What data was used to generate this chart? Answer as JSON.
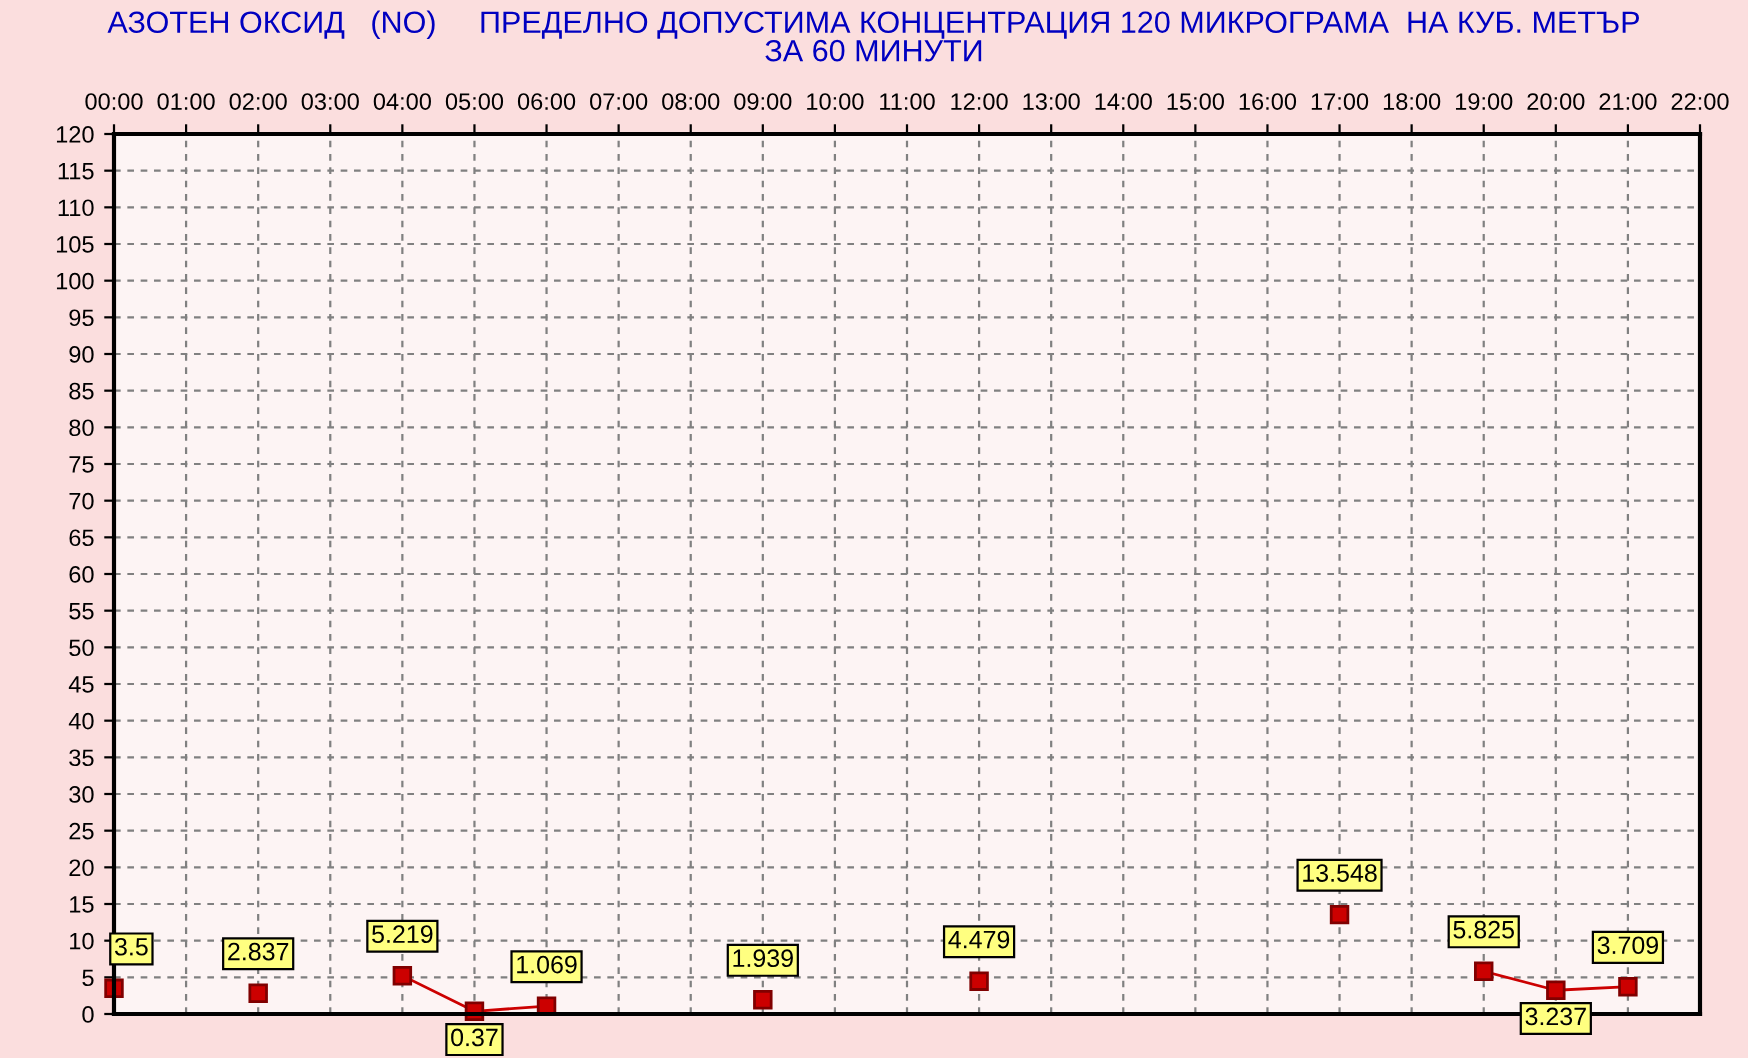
{
  "chart_data": {
    "type": "line",
    "title": "АЗОТЕН ОКСИД   (NO)     ПРЕДЕЛНО ДОПУСТИМА КОНЦЕНТРАЦИЯ 120 МИКРОГРАМА  НА КУБ. МЕТЪР\nЗА 60 МИНУТИ",
    "x": [
      0,
      1,
      2,
      3,
      4,
      5,
      6,
      7,
      8,
      9,
      10,
      11,
      12,
      13,
      14,
      15,
      16,
      17,
      18,
      19,
      20,
      21
    ],
    "series": [
      {
        "color": "#cc0000",
        "values": [
          3.5,
          null,
          2.837,
          null,
          5.219,
          0.37,
          1.069,
          null,
          null,
          1.939,
          null,
          null,
          4.479,
          null,
          null,
          null,
          null,
          13.548,
          null,
          5.825,
          3.237,
          3.709
        ]
      }
    ],
    "xlim": [
      0,
      22
    ],
    "xticks": [
      {
        "value": 0,
        "label": "00:00"
      },
      {
        "value": 1,
        "label": "01:00"
      },
      {
        "value": 2,
        "label": "02:00"
      },
      {
        "value": 3,
        "label": "03:00"
      },
      {
        "value": 4,
        "label": "04:00"
      },
      {
        "value": 5,
        "label": "05:00"
      },
      {
        "value": 6,
        "label": "06:00"
      },
      {
        "value": 7,
        "label": "07:00"
      },
      {
        "value": 8,
        "label": "08:00"
      },
      {
        "value": 9,
        "label": "09:00"
      },
      {
        "value": 10,
        "label": "10:00"
      },
      {
        "value": 11,
        "label": "11:00"
      },
      {
        "value": 12,
        "label": "12:00"
      },
      {
        "value": 13,
        "label": "13:00"
      },
      {
        "value": 14,
        "label": "14:00"
      },
      {
        "value": 15,
        "label": "15:00"
      },
      {
        "value": 16,
        "label": "16:00"
      },
      {
        "value": 17,
        "label": "17:00"
      },
      {
        "value": 18,
        "label": "18:00"
      },
      {
        "value": 19,
        "label": "19:00"
      },
      {
        "value": 20,
        "label": "20:00"
      },
      {
        "value": 21,
        "label": "21:00"
      },
      {
        "value": 22,
        "label": "22:00"
      }
    ],
    "ylim": [
      0,
      120
    ],
    "yticks": [
      0,
      5,
      10,
      15,
      20,
      25,
      30,
      35,
      40,
      45,
      50,
      55,
      60,
      65,
      70,
      75,
      80,
      85,
      90,
      95,
      100,
      105,
      110,
      115,
      120
    ],
    "grid": true,
    "marker": "square",
    "line_style": "solid",
    "data_labels": true
  }
}
